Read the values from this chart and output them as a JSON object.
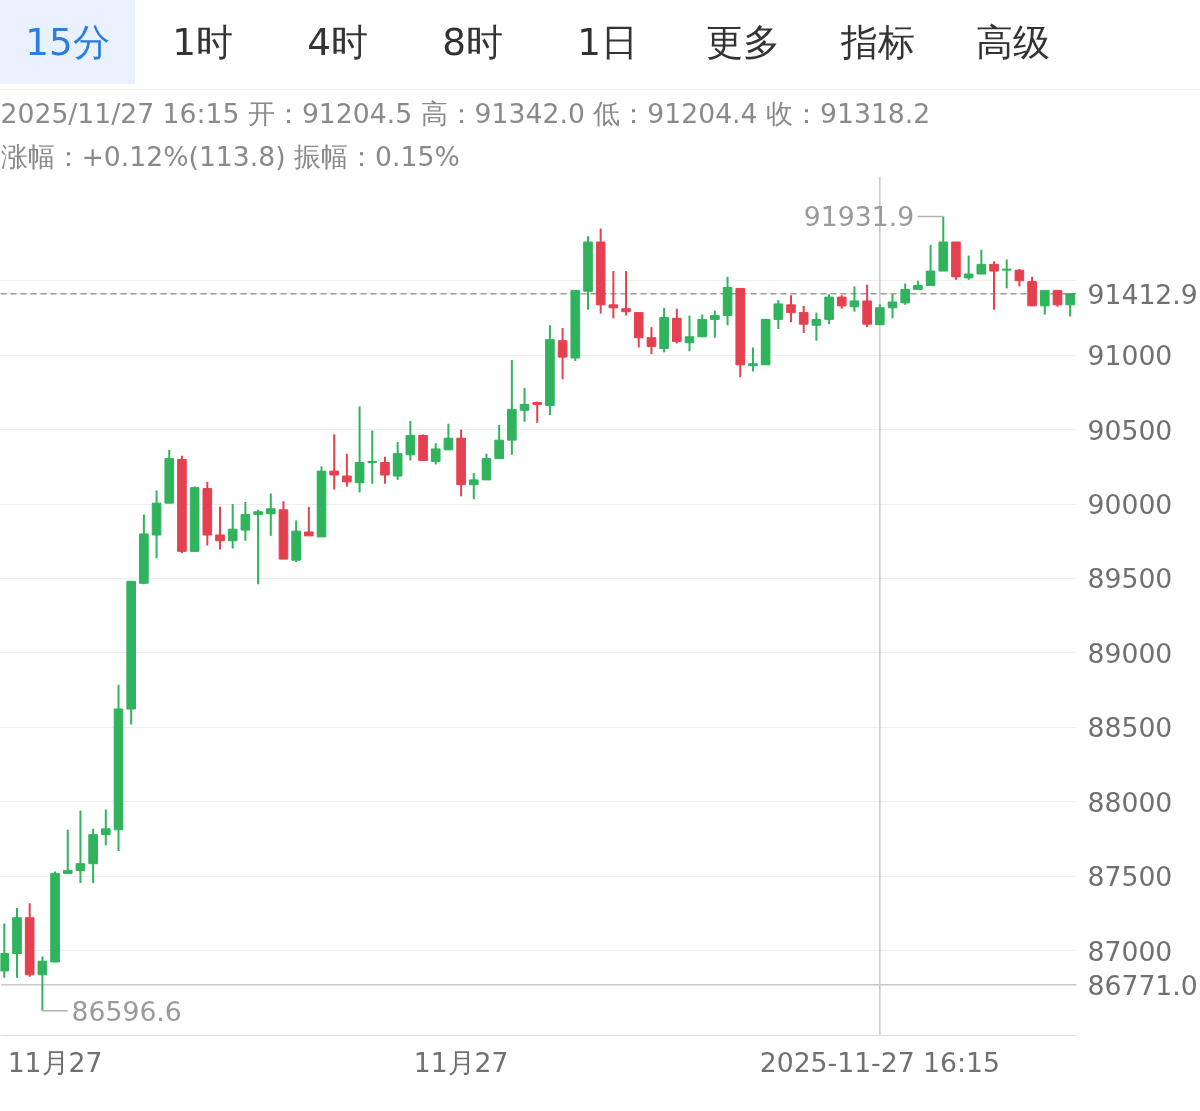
{
  "chart_data": {
    "type": "candlestick",
    "title": "2025/11/27 16:15 开：91204.5 高：91342.0 低：91204.4 收：91318.2",
    "subtitle": "涨幅：+0.12%(113.8) 振幅：0.15%",
    "annotations": [
      "15分",
      "1时",
      "4时",
      "8时",
      "1日",
      "更多",
      "指标",
      "高级",
      "91931.9",
      "86596.6"
    ],
    "categories": [
      null,
      null,
      null,
      null,
      "11月27",
      null,
      null,
      null,
      null,
      null,
      null,
      null,
      null,
      null,
      null,
      null,
      null,
      null,
      null,
      null,
      null,
      null,
      null,
      null,
      null,
      null,
      null,
      null,
      null,
      null,
      null,
      null,
      null,
      null,
      null,
      null,
      "11月27",
      null,
      null,
      null,
      null,
      null,
      null,
      null,
      null,
      null,
      null,
      null,
      null,
      null,
      null,
      null,
      null,
      null,
      null,
      null,
      null,
      null,
      null,
      null,
      null,
      null,
      null,
      null,
      null,
      null,
      null,
      null,
      null,
      "2025-11-27 16:15",
      null,
      null,
      null,
      null,
      null,
      null,
      null,
      null,
      null,
      null,
      null,
      null,
      null,
      null,
      null
    ],
    "ohlc": [
      [
        86864,
        87182,
        86818,
        86981
      ],
      [
        86981,
        87286,
        86818,
        87221
      ],
      [
        87221,
        87318,
        86825,
        86838
      ],
      [
        86838,
        86961,
        86596.6,
        86929
      ],
      [
        86924,
        87532,
        86922,
        87519
      ],
      [
        87519,
        87812,
        87519,
        87539
      ],
      [
        87539,
        87942,
        87455,
        87584
      ],
      [
        87584,
        87818,
        87455,
        87779
      ],
      [
        87779,
        87948,
        87708,
        87818
      ],
      [
        87812,
        88786,
        87669,
        88623
      ],
      [
        88623,
        89481,
        88519,
        89481
      ],
      [
        89468,
        89929,
        89461,
        89799
      ],
      [
        89792,
        90091,
        89636,
        90006
      ],
      [
        90006,
        90364,
        90006,
        90305
      ],
      [
        90299,
        90325,
        89669,
        89682
      ],
      [
        89682,
        90117,
        89682,
        90110
      ],
      [
        90104,
        90149,
        89721,
        89792
      ],
      [
        89792,
        89981,
        89695,
        89753
      ],
      [
        89753,
        90000,
        89701,
        89831
      ],
      [
        89825,
        90013,
        89753,
        89929
      ],
      [
        89929,
        89961,
        89461,
        89948
      ],
      [
        89935,
        90071,
        89786,
        89968
      ],
      [
        89961,
        90019,
        89630,
        89630
      ],
      [
        89623,
        89890,
        89610,
        89818
      ],
      [
        89812,
        89981,
        89786,
        89786
      ],
      [
        89779,
        90253,
        89779,
        90221
      ],
      [
        90221,
        90468,
        90097,
        90195
      ],
      [
        90188,
        90338,
        90117,
        90149
      ],
      [
        90143,
        90656,
        90078,
        90279
      ],
      [
        90279,
        90494,
        90136,
        90286
      ],
      [
        90279,
        90318,
        90136,
        90195
      ],
      [
        90188,
        90416,
        90162,
        90338
      ],
      [
        90331,
        90558,
        90292,
        90461
      ],
      [
        90461,
        90468,
        90292,
        90292
      ],
      [
        90286,
        90409,
        90266,
        90370
      ],
      [
        90364,
        90539,
        90364,
        90442
      ],
      [
        90442,
        90500,
        90052,
        90130
      ],
      [
        90130,
        90208,
        90032,
        90162
      ],
      [
        90162,
        90338,
        90162,
        90305
      ],
      [
        90305,
        90532,
        90305,
        90429
      ],
      [
        90429,
        90968,
        90331,
        90636
      ],
      [
        90630,
        90779,
        90552,
        90669
      ],
      [
        90682,
        90688,
        90545,
        90669
      ],
      [
        90662,
        91201,
        90597,
        91104
      ],
      [
        91097,
        91182,
        90838,
        90987
      ],
      [
        90981,
        91435,
        90961,
        91435
      ],
      [
        91429,
        91799,
        91305,
        91760
      ],
      [
        91760,
        91851,
        91279,
        91338
      ],
      [
        91338,
        91565,
        91247,
        91318
      ],
      [
        91312,
        91565,
        91266,
        91292
      ],
      [
        91286,
        91286,
        91052,
        91117
      ],
      [
        91117,
        91188,
        91006,
        91058
      ],
      [
        91045,
        91318,
        91019,
        91253
      ],
      [
        91247,
        91312,
        91078,
        91091
      ],
      [
        91084,
        91266,
        91026,
        91123
      ],
      [
        91123,
        91273,
        91123,
        91240
      ],
      [
        91240,
        91299,
        91117,
        91266
      ],
      [
        91266,
        91526,
        91201,
        91455
      ],
      [
        91448,
        91448,
        90851,
        90935
      ],
      [
        90929,
        91052,
        90890,
        90942
      ],
      [
        90935,
        91240,
        90935,
        91240
      ],
      [
        91240,
        91370,
        91175,
        91344
      ],
      [
        91338,
        91403,
        91221,
        91286
      ],
      [
        91286,
        91331,
        91149,
        91208
      ],
      [
        91201,
        91286,
        91097,
        91240
      ],
      [
        91240,
        91409,
        91208,
        91390
      ],
      [
        91390,
        91403,
        91312,
        91331
      ],
      [
        91325,
        91461,
        91292,
        91364
      ],
      [
        91364,
        91474,
        91188,
        91208
      ],
      [
        91204.5,
        91342.0,
        91204.4,
        91318.2
      ],
      [
        91318,
        91409,
        91247,
        91357
      ],
      [
        91351,
        91481,
        91338,
        91442
      ],
      [
        91442,
        91500,
        91442,
        91468
      ],
      [
        91468,
        91740,
        91468,
        91565
      ],
      [
        91565,
        91931.9,
        91565,
        91760
      ],
      [
        91760,
        91760,
        91506,
        91526
      ],
      [
        91519,
        91669,
        91506,
        91545
      ],
      [
        91545,
        91708,
        91545,
        91610
      ],
      [
        91610,
        91630,
        91305,
        91565
      ],
      [
        91571,
        91643,
        91448,
        91578
      ],
      [
        91571,
        91578,
        91461,
        91500
      ],
      [
        91494,
        91526,
        91331,
        91331
      ],
      [
        91331,
        91435,
        91273,
        91435
      ],
      [
        91435,
        91435,
        91325,
        91338
      ],
      [
        91338,
        91412.9,
        91260,
        91412.9
      ]
    ],
    "colors": [
      "#2fb35c",
      "#2fb35c",
      "#e5404f",
      "#2fb35c",
      "#2fb35c",
      "#2fb35c",
      "#2fb35c",
      "#2fb35c",
      "#2fb35c",
      "#2fb35c",
      "#2fb35c",
      "#2fb35c",
      "#2fb35c",
      "#2fb35c",
      "#e5404f",
      "#2fb35c",
      "#e5404f",
      "#e5404f",
      "#2fb35c",
      "#2fb35c",
      "#2fb35c",
      "#2fb35c",
      "#e5404f",
      "#2fb35c",
      "#e5404f",
      "#2fb35c",
      "#e5404f",
      "#e5404f",
      "#2fb35c",
      "#2fb35c",
      "#e5404f",
      "#2fb35c",
      "#2fb35c",
      "#e5404f",
      "#2fb35c",
      "#2fb35c",
      "#e5404f",
      "#2fb35c",
      "#2fb35c",
      "#2fb35c",
      "#2fb35c",
      "#2fb35c",
      "#e5404f",
      "#2fb35c",
      "#e5404f",
      "#2fb35c",
      "#2fb35c",
      "#e5404f",
      "#e5404f",
      "#e5404f",
      "#e5404f",
      "#e5404f",
      "#2fb35c",
      "#e5404f",
      "#2fb35c",
      "#2fb35c",
      "#2fb35c",
      "#2fb35c",
      "#e5404f",
      "#2fb35c",
      "#2fb35c",
      "#2fb35c",
      "#e5404f",
      "#e5404f",
      "#2fb35c",
      "#2fb35c",
      "#e5404f",
      "#2fb35c",
      "#e5404f",
      "#2fb35c",
      "#2fb35c",
      "#2fb35c",
      "#2fb35c",
      "#2fb35c",
      "#2fb35c",
      "#e5404f",
      "#2fb35c",
      "#2fb35c",
      "#e5404f",
      "#2fb35c",
      "#e5404f",
      "#e5404f",
      "#2fb35c",
      "#e5404f",
      "#2fb35c"
    ],
    "ylim": [
      86430,
      92200
    ],
    "yticks": [
      87000,
      87500,
      88000,
      88500,
      89000,
      89500,
      90000,
      90500,
      91000,
      {
        "value": 91500,
        "label": null
      }
    ],
    "grid": "y",
    "ref_lines": [
      {
        "axis": "y",
        "value": 91412.9,
        "label": "91412.9",
        "color": "#999999",
        "line_style": "dashed"
      },
      {
        "axis": "y",
        "value": 86771.0,
        "label": "86771.0",
        "color": "#c8c8c8",
        "line_style": "solid"
      },
      {
        "axis": "x",
        "value": "2025-11-27 16:15",
        "color": "#c8c8c8",
        "line_style": "solid"
      }
    ]
  }
}
